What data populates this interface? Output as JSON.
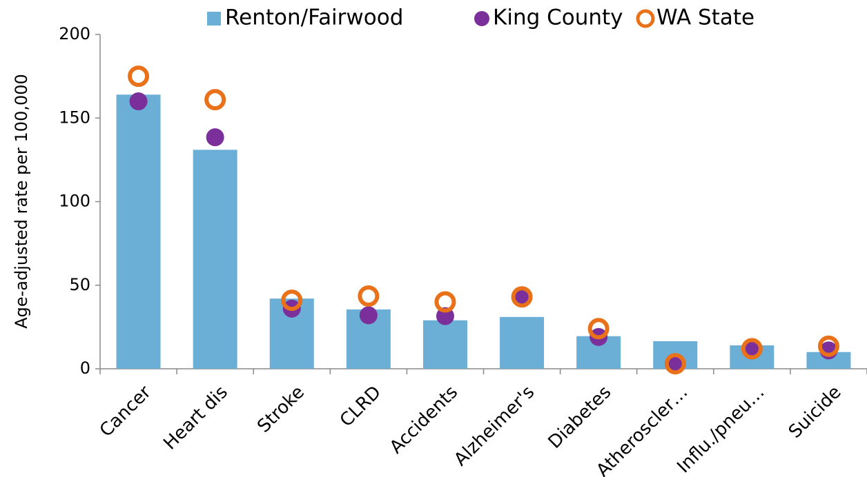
{
  "chart_data": {
    "type": "bar",
    "y_label": "Age-adjusted rate per 100,000",
    "categories": [
      "Cancer",
      "Heart dis",
      "Stroke",
      "CLRD",
      "Accidents",
      "Alzheimer's",
      "Diabetes",
      "Atheroscler…",
      "Influ./pneu…",
      "Suicide"
    ],
    "series": [
      {
        "name": "Renton/Fairwood",
        "color": "#6baed6",
        "marker": "bar",
        "values": [
          164,
          131,
          42,
          35.5,
          29,
          31,
          19.5,
          16.5,
          14,
          10
        ]
      },
      {
        "name": "King County",
        "color": "#7b2f9b",
        "marker": "dot",
        "values": [
          160,
          138.5,
          36,
          32,
          31.5,
          43,
          19,
          2.5,
          11,
          11
        ]
      },
      {
        "name": "WA State",
        "color": "#e8711a",
        "marker": "ring",
        "values": [
          175,
          161,
          41,
          43.5,
          40,
          43,
          24,
          3,
          12,
          13.5
        ]
      }
    ],
    "ylim": [
      0,
      200
    ],
    "yticks": [
      0,
      50,
      100,
      150,
      200
    ],
    "grid": false
  }
}
